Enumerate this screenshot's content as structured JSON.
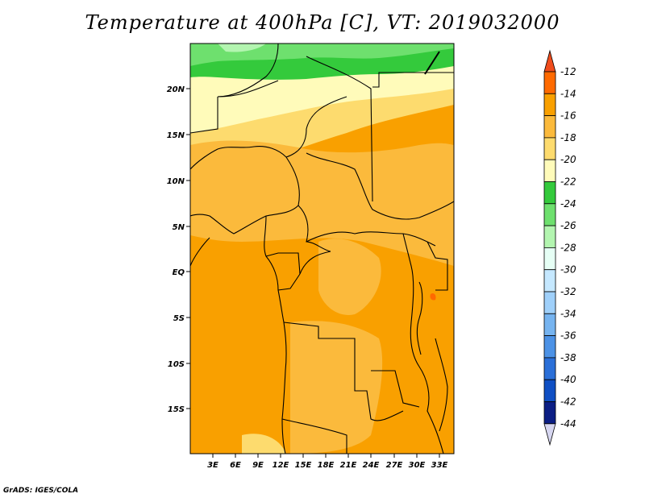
{
  "title": "Temperature at 400hPa [C], VT: 2019032000",
  "credit": "GrADS: IGES/COLA",
  "map": {
    "lat_labels": [
      "20N",
      "15N",
      "10N",
      "5N",
      "EQ",
      "5S",
      "10S",
      "15S"
    ],
    "lon_labels": [
      "3E",
      "6E",
      "9E",
      "12E",
      "15E",
      "18E",
      "21E",
      "24E",
      "27E",
      "30E",
      "33E"
    ]
  },
  "colorbar": {
    "labels": [
      "-12",
      "-14",
      "-16",
      "-18",
      "-20",
      "-22",
      "-24",
      "-26",
      "-28",
      "-30",
      "-32",
      "-34",
      "-36",
      "-38",
      "-40",
      "-42",
      "-44"
    ],
    "colors": {
      "max_arrow": "#f04c1c",
      "-14_to_-12": "#ff6a00",
      "-16_to_-14": "#f9a000",
      "-18_to_-16": "#fbba3c",
      "-20_to_-18": "#fddb6e",
      "-22_to_-20": "#fffbba",
      "-24_to_-22": "#34ca3c",
      "-26_to_-24": "#6ee06e",
      "-28_to_-26": "#b3f5b0",
      "-30_to_-28": "#e6fff5",
      "-32_to_-30": "#c5e8ff",
      "-34_to_-32": "#9fd0fa",
      "-36_to_-34": "#76b4f0",
      "-38_to_-36": "#4c92e6",
      "-40_to_-38": "#2a6fd8",
      "-42_to_-40": "#0f4fc4",
      "-44_to_-42": "#0b1e84",
      "min_arrow": "#d6d6f0"
    }
  }
}
